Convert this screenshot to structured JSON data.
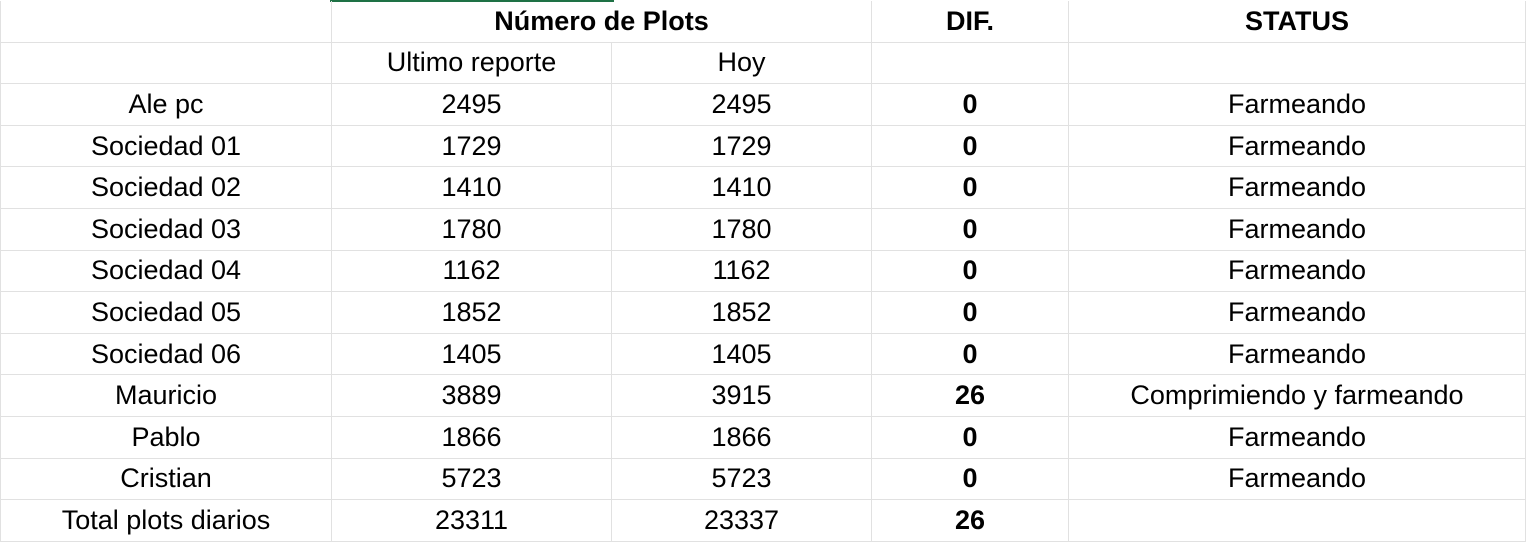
{
  "header": {
    "plots_title": "Número de Plots",
    "diff_title": "DIF.",
    "status_title": "STATUS",
    "last_report": "Ultimo reporte",
    "today": "Hoy"
  },
  "rows": [
    {
      "name": "Ale pc",
      "last": "2495",
      "today": "2495",
      "diff": "0",
      "status": "Farmeando"
    },
    {
      "name": "Sociedad 01",
      "last": "1729",
      "today": "1729",
      "diff": "0",
      "status": "Farmeando"
    },
    {
      "name": "Sociedad 02",
      "last": "1410",
      "today": "1410",
      "diff": "0",
      "status": "Farmeando"
    },
    {
      "name": "Sociedad 03",
      "last": "1780",
      "today": "1780",
      "diff": "0",
      "status": "Farmeando"
    },
    {
      "name": "Sociedad 04",
      "last": "1162",
      "today": "1162",
      "diff": "0",
      "status": "Farmeando"
    },
    {
      "name": "Sociedad 05",
      "last": "1852",
      "today": "1852",
      "diff": "0",
      "status": "Farmeando"
    },
    {
      "name": "Sociedad 06",
      "last": "1405",
      "today": "1405",
      "diff": "0",
      "status": "Farmeando"
    },
    {
      "name": "Mauricio",
      "last": "3889",
      "today": "3915",
      "diff": "26",
      "status": "Comprimiendo y farmeando"
    },
    {
      "name": "Pablo",
      "last": "1866",
      "today": "1866",
      "diff": "0",
      "status": "Farmeando"
    },
    {
      "name": "Cristian",
      "last": "5723",
      "today": "5723",
      "diff": "0",
      "status": "Farmeando"
    }
  ],
  "total": {
    "name": "Total plots diarios",
    "last": "23311",
    "today": "23337",
    "diff": "26",
    "status": ""
  },
  "colors": {
    "selection_accent": "#1e7145",
    "gridline": "#e1e1e1"
  }
}
